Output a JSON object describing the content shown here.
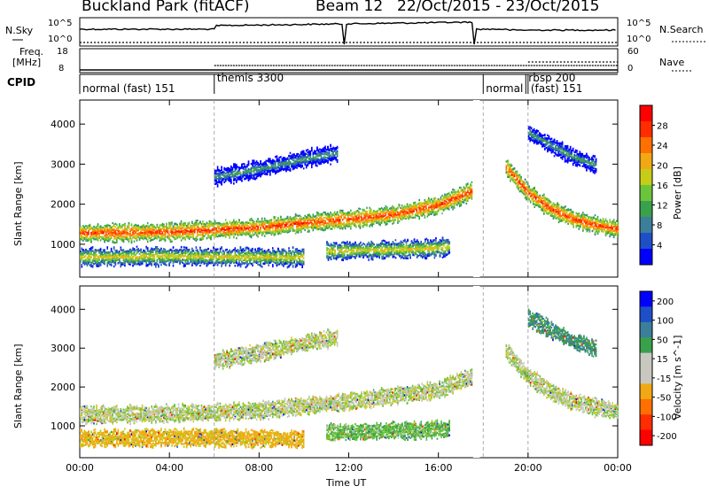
{
  "header": {
    "station": "Buckland Park (fitACF)",
    "beam": "Beam 12",
    "dates": "22/Oct/2015 - 23/Oct/2015"
  },
  "panel_labels": {
    "nsky": "N.Sky",
    "nsky_top": "10^5",
    "nsky_bottom": "10^0",
    "nsearch": "N.Search",
    "nsearch_top": "10^5",
    "nsearch_bottom": "10^0",
    "freq": "Freq.",
    "freq_unit": "[MHz]",
    "freq_top": "18",
    "freq_bottom": "8",
    "nave": "Nave",
    "nave_top": "60",
    "nave_bottom": "0",
    "cpid": "CPID"
  },
  "cpid_segments": [
    {
      "label": "normal (fast) 151",
      "start": 0,
      "end": 6.0
    },
    {
      "label": "themis 3300",
      "start": 6.0,
      "end": 18.0
    },
    {
      "label": "normal",
      "start": 18.0,
      "end": 19.9
    },
    {
      "label": "rbsp 200",
      "start": 19.9,
      "end": 20.0
    },
    {
      "label": "(fast) 151",
      "start": 20.0,
      "end": 24.0
    }
  ],
  "colors": {
    "scale": [
      "#0000ff",
      "#1f4fc8",
      "#3c7f9a",
      "#39a14c",
      "#6cc43b",
      "#c6cc17",
      "#f2a814",
      "#ff7000",
      "#ff2d00",
      "#ff0000"
    ],
    "ground_scatter": "#c8c8c0",
    "text": "#000000"
  },
  "chart_data": [
    {
      "type": "heatmap",
      "title": "Power",
      "ylabel": "Slant Range [km]",
      "xlabel": "Time UT",
      "xlim": [
        0,
        24
      ],
      "ylim": [
        180,
        4600
      ],
      "x_ticks": [
        "00:00",
        "04:00",
        "08:00",
        "12:00",
        "16:00",
        "20:00",
        "00:00"
      ],
      "y_ticks": [
        1000,
        2000,
        3000,
        4000
      ],
      "colorbar": {
        "label": "Power [dB]",
        "ticks": [
          4,
          8,
          12,
          16,
          20,
          24,
          28
        ],
        "range": [
          0,
          32
        ]
      },
      "features": [
        {
          "name": "main band",
          "x": [
            0,
            4,
            6,
            8,
            10,
            12,
            14,
            16,
            17.5
          ],
          "y": [
            1300,
            1330,
            1380,
            1440,
            1550,
            1650,
            1760,
            2000,
            2350
          ],
          "value": 28
        },
        {
          "name": "lower band",
          "x": [
            0,
            4,
            8,
            10
          ],
          "y": [
            700,
            720,
            700,
            690
          ],
          "value": 20
        },
        {
          "name": "upper cloud",
          "x": [
            6.0,
            8,
            10,
            11.5
          ],
          "y": [
            2700,
            2900,
            3150,
            3300
          ],
          "value": 12
        },
        {
          "name": "mid band",
          "x": [
            11,
            13,
            15,
            16.5
          ],
          "y": [
            850,
            880,
            900,
            950
          ],
          "value": 20
        },
        {
          "name": "evening band",
          "x": [
            19,
            20,
            21,
            22,
            23,
            24
          ],
          "y": [
            2950,
            2300,
            1900,
            1650,
            1500,
            1400
          ],
          "value": 28
        },
        {
          "name": "high arc",
          "x": [
            20,
            21,
            22,
            23
          ],
          "y": [
            3800,
            3500,
            3200,
            3000
          ],
          "value": 12
        }
      ]
    },
    {
      "type": "heatmap",
      "title": "Velocity",
      "ylabel": "Slant Range [km]",
      "xlabel": "Time UT",
      "xlim": [
        0,
        24
      ],
      "ylim": [
        180,
        4600
      ],
      "x_ticks": [
        "00:00",
        "04:00",
        "08:00",
        "12:00",
        "16:00",
        "20:00",
        "00:00"
      ],
      "y_ticks": [
        1000,
        2000,
        3000,
        4000
      ],
      "colorbar": {
        "label": "Velocity [m s^-1]",
        "ticks": [
          200,
          100,
          50,
          15,
          -15,
          -50,
          -100,
          -200
        ],
        "range": [
          -250,
          250
        ]
      },
      "features": [
        {
          "name": "ground scatter band",
          "x": [
            0,
            4,
            8,
            12,
            16,
            17.5
          ],
          "y": [
            1300,
            1330,
            1420,
            1650,
            1950,
            2300
          ],
          "value": 0
        },
        {
          "name": "lower band",
          "x": [
            0,
            4,
            8,
            10
          ],
          "y": [
            700,
            720,
            700,
            690
          ],
          "value": -60
        },
        {
          "name": "upper cloud",
          "x": [
            6.0,
            8,
            10,
            11.5
          ],
          "y": [
            2700,
            2900,
            3150,
            3300
          ],
          "value": 0
        },
        {
          "name": "mid band",
          "x": [
            11,
            13,
            15,
            16.5
          ],
          "y": [
            850,
            880,
            900,
            950
          ],
          "value": 40
        },
        {
          "name": "evening band",
          "x": [
            19,
            20,
            21,
            22,
            23,
            24
          ],
          "y": [
            2950,
            2300,
            1900,
            1650,
            1500,
            1400
          ],
          "value": 0
        },
        {
          "name": "high arc",
          "x": [
            20,
            21,
            22,
            23
          ],
          "y": [
            3800,
            3500,
            3200,
            3000
          ],
          "value": 100
        }
      ]
    }
  ]
}
